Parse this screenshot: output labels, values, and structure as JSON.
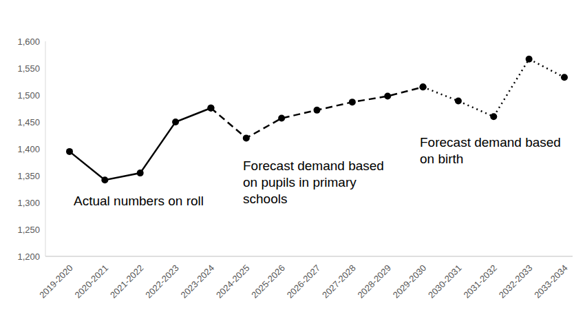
{
  "chart_data": {
    "type": "line",
    "categories": [
      "2019-2020",
      "2020-2021",
      "2021-2022",
      "2022-2023",
      "2023-2024",
      "2024-2025",
      "2025-2026",
      "2026-2027",
      "2027-2028",
      "2028-2029",
      "2029-2030",
      "2030-2031",
      "2031-2032",
      "2032-2033",
      "2033-2034"
    ],
    "series": [
      {
        "name": "Actual numbers on roll",
        "color": "#000000",
        "line_style": "solid",
        "marker": "circle",
        "values": [
          1395,
          1342,
          1355,
          1450,
          1476,
          null,
          null,
          null,
          null,
          null,
          null,
          null,
          null,
          null,
          null
        ]
      },
      {
        "name": "Forecast demand based on pupils in primary schools",
        "color": "#000000",
        "line_style": "dashed",
        "marker": "circle",
        "values": [
          null,
          null,
          null,
          null,
          1476,
          1420,
          1457,
          1472,
          1487,
          1498,
          1515,
          null,
          null,
          null,
          null
        ]
      },
      {
        "name": "Forecast demand based on birth",
        "color": "#000000",
        "line_style": "dotted",
        "marker": "circle",
        "values": [
          null,
          null,
          null,
          null,
          null,
          null,
          null,
          null,
          null,
          null,
          1515,
          1489,
          1460,
          1567,
          1533
        ]
      }
    ],
    "ylim": [
      1200,
      1600
    ],
    "yticks": [
      {
        "value": 1200,
        "label": "1,200"
      },
      {
        "value": 1250,
        "label": "1,250"
      },
      {
        "value": 1300,
        "label": "1,300"
      },
      {
        "value": 1350,
        "label": "1,350"
      },
      {
        "value": 1400,
        "label": "1,400"
      },
      {
        "value": 1450,
        "label": "1,450"
      },
      {
        "value": 1500,
        "label": "1,500"
      },
      {
        "value": 1550,
        "label": "1,550"
      },
      {
        "value": 1600,
        "label": "1,600"
      }
    ],
    "grid": false
  }
}
